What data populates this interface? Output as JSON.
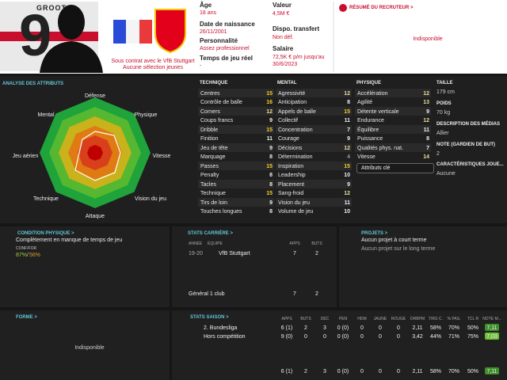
{
  "header": {
    "name": "GROOT",
    "shirt_number": "9",
    "contract": "Sous contrat avec le VfB Stuttgart",
    "youth": "Aucune sélection jeunes",
    "info": [
      {
        "label": "Âge",
        "value": "18 ans"
      },
      {
        "label": "Date de naissance",
        "value": "26/11/2001"
      },
      {
        "label": "Personnalité",
        "value": "Assez professionnel"
      },
      {
        "label": "Temps de jeu réel",
        "value": "-"
      }
    ],
    "info2": [
      {
        "label": "Valeur",
        "value": "4,5M €"
      },
      {
        "label": "Dispo. transfert",
        "value": "Non déf."
      },
      {
        "label": "Salaire",
        "value": "72,5K € p/m jusqu'au 30/6/2023"
      }
    ]
  },
  "scout": {
    "title": "RÉSUMÉ DU RECRUTEUR >",
    "status": "Indisponible"
  },
  "attributes": {
    "title": "ANALYSE DES ATTRIBUTS",
    "radar": [
      "Défense",
      "Physique",
      "Vitesse",
      "Vision du jeu",
      "Attaque",
      "Technique",
      "Jeu aérien",
      "Mental"
    ],
    "key": "Attributs clé",
    "columns": [
      {
        "title": "TECHNIQUE",
        "rows": [
          [
            "Centres",
            15
          ],
          [
            "Contrôle de balle",
            16
          ],
          [
            "Corners",
            12
          ],
          [
            "Coups francs",
            9
          ],
          [
            "Dribble",
            15
          ],
          [
            "Finition",
            11
          ],
          [
            "Jeu de tête",
            9
          ],
          [
            "Marquage",
            8
          ],
          [
            "Passes",
            15
          ],
          [
            "Penalty",
            8
          ],
          [
            "Tacles",
            8
          ],
          [
            "Technique",
            15
          ],
          [
            "Tirs de loin",
            9
          ],
          [
            "Touches longues",
            8
          ]
        ]
      },
      {
        "title": "MENTAL",
        "rows": [
          [
            "Agressivité",
            12
          ],
          [
            "Anticipation",
            8
          ],
          [
            "Appels de balle",
            15
          ],
          [
            "Collectif",
            11
          ],
          [
            "Concentration",
            7
          ],
          [
            "Courage",
            9
          ],
          [
            "Décisions",
            12
          ],
          [
            "Détermination",
            4
          ],
          [
            "Inspiration",
            15
          ],
          [
            "Leadership",
            10
          ],
          [
            "Placement",
            9
          ],
          [
            "Sang-froid",
            12
          ],
          [
            "Vision du jeu",
            11
          ],
          [
            "Volume de jeu",
            10
          ]
        ]
      },
      {
        "title": "PHYSIQUE",
        "rows": [
          [
            "Accélération",
            12
          ],
          [
            "Agilité",
            13
          ],
          [
            "Détente verticale",
            9
          ],
          [
            "Endurance",
            12
          ],
          [
            "Équilibre",
            11
          ],
          [
            "Puissance",
            8
          ],
          [
            "Qualités phys. nat.",
            7
          ],
          [
            "Vitesse",
            14
          ]
        ]
      }
    ]
  },
  "details": [
    {
      "label": "TAILLE",
      "value": "179 cm"
    },
    {
      "label": "POIDS",
      "value": "70 kg"
    },
    {
      "label": "DESCRIPTION DES MÉDIAS",
      "value": "Allier"
    },
    {
      "label": "NOTE (GARDIEN DE BUT)",
      "value": "2"
    },
    {
      "label": "CARACTÉRISTIQUES JOUE...",
      "value": "Aucune"
    }
  ],
  "condition": {
    "title": "CONDITION PHYSIQUE >",
    "status": "Complètement en manque de temps de jeu",
    "label": "CONF/FOR",
    "conf": "87%",
    "sep": "/",
    "form": "56%"
  },
  "career": {
    "title": "STATS CARRIÈRE >",
    "headers": [
      "ANNÉE",
      "ÉQUIPE",
      "APPS",
      "BUTS"
    ],
    "rows": [
      [
        "19-20",
        "VfB Stuttgart",
        7,
        2
      ]
    ],
    "total": [
      "Général 1 club",
      7,
      2
    ]
  },
  "projects": {
    "title": "PROJETS >",
    "items": [
      "Aucun projet à court terme",
      "Aucun projet sur le long terme"
    ]
  },
  "form": {
    "title": "FORME >",
    "status": "Indisponible"
  },
  "season": {
    "title": "STATS SAISON >",
    "headers": [
      "APPS",
      "BUTS",
      "DÉC",
      "PEN",
      "HDM",
      "JAUNE",
      "ROUGE",
      "DRBPM",
      "TIRS C.",
      "% PAS.",
      "TCL R",
      "NOTE M..."
    ],
    "rows": [
      {
        "name": "2. Bundesliga",
        "cells": [
          "6 (1)",
          "2",
          "3",
          "0 (0)",
          "0",
          "0",
          "0",
          "2,11",
          "58%",
          "70%",
          "50%",
          "7,11"
        ]
      },
      {
        "name": "Hors compétition",
        "cells": [
          "9 (0)",
          "0",
          "0",
          "0 (0)",
          "0",
          "0",
          "0",
          "3,42",
          "44%",
          "71%",
          "75%",
          "7,03"
        ]
      }
    ],
    "total": [
      "6 (1)",
      "2",
      "3",
      "0 (0)",
      "0",
      "0",
      "0",
      "2,11",
      "58%",
      "70%",
      "50%",
      "7,11"
    ]
  }
}
